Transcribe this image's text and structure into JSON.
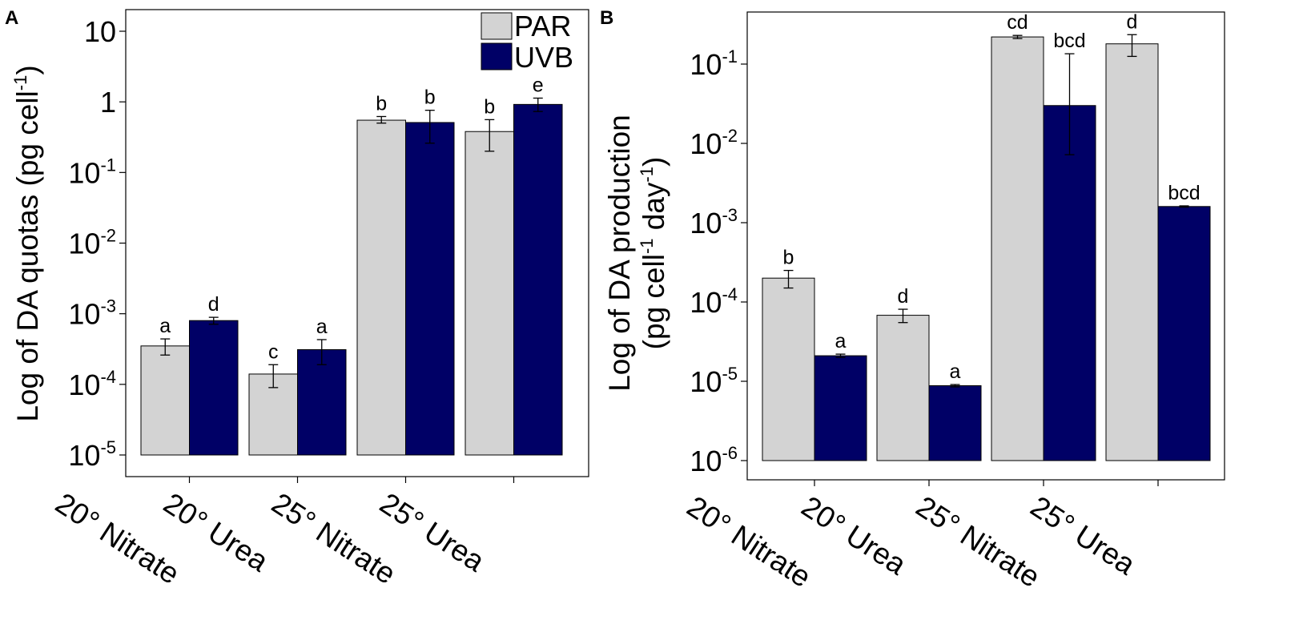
{
  "chart_data": [
    {
      "panel": "A",
      "type": "bar",
      "scale": "log",
      "ylabel": "Log of DA quotas (pg cell-1)",
      "ylim": [
        1e-05,
        20
      ],
      "yticks": [
        {
          "value": 1e-05,
          "base": "10",
          "exp": "-5"
        },
        {
          "value": 0.0001,
          "base": "10",
          "exp": "-4"
        },
        {
          "value": 0.001,
          "base": "10",
          "exp": "-3"
        },
        {
          "value": 0.01,
          "base": "10",
          "exp": "-2"
        },
        {
          "value": 0.1,
          "base": "10",
          "exp": "-1"
        },
        {
          "value": 1,
          "base": "1",
          "exp": ""
        },
        {
          "value": 10,
          "base": "10",
          "exp": ""
        }
      ],
      "categories": [
        "20° Nitrate",
        "20° Urea",
        "25° Nitrate",
        "25° Urea"
      ],
      "series": [
        {
          "name": "PAR",
          "color": "#d3d3d3",
          "values": [
            0.00035,
            0.00014,
            0.55,
            0.38
          ],
          "err_low": [
            0.00026,
            9e-05,
            0.5,
            0.2
          ],
          "err_high": [
            0.00044,
            0.00019,
            0.62,
            0.56
          ],
          "letters": [
            "a",
            "c",
            "b",
            "b"
          ]
        },
        {
          "name": "UVB",
          "color": "#000066",
          "values": [
            0.0008,
            0.00031,
            0.51,
            0.92
          ],
          "err_low": [
            0.00071,
            0.00019,
            0.26,
            0.73
          ],
          "err_high": [
            0.00089,
            0.00043,
            0.76,
            1.13
          ],
          "letters": [
            "d",
            "a",
            "b",
            "e"
          ]
        }
      ],
      "legend": {
        "position": "top-right",
        "entries": [
          "PAR",
          "UVB"
        ]
      }
    },
    {
      "panel": "B",
      "type": "bar",
      "scale": "log",
      "ylabel_line1": "Log of DA production",
      "ylabel_line2": "(pg cell-1 day-1)",
      "ylim": [
        1e-06,
        0.45
      ],
      "yticks": [
        {
          "value": 1e-06,
          "base": "10",
          "exp": "-6"
        },
        {
          "value": 1e-05,
          "base": "10",
          "exp": "-5"
        },
        {
          "value": 0.0001,
          "base": "10",
          "exp": "-4"
        },
        {
          "value": 0.001,
          "base": "10",
          "exp": "-3"
        },
        {
          "value": 0.01,
          "base": "10",
          "exp": "-2"
        },
        {
          "value": 0.1,
          "base": "10",
          "exp": "-1"
        }
      ],
      "categories": [
        "20° Nitrate",
        "20° Urea",
        "25° Nitrate",
        "25° Urea"
      ],
      "series": [
        {
          "name": "PAR",
          "color": "#d3d3d3",
          "values": [
            0.0002,
            6.8e-05,
            0.22,
            0.18
          ],
          "err_low": [
            0.00015,
            5.5e-05,
            0.21,
            0.125
          ],
          "err_high": [
            0.00025,
            8.1e-05,
            0.23,
            0.235
          ],
          "letters": [
            "b",
            "d",
            "cd",
            "d"
          ]
        },
        {
          "name": "UVB",
          "color": "#000066",
          "values": [
            2.1e-05,
            8.8e-06,
            0.03,
            0.0016
          ],
          "err_low": [
            2e-05,
            8.5e-06,
            0.0072,
            0.00157
          ],
          "err_high": [
            2.2e-05,
            9.1e-06,
            0.135,
            0.00163
          ],
          "letters": [
            "a",
            "a",
            "bcd",
            "bcd"
          ]
        }
      ]
    }
  ],
  "ylabel_parts": {
    "quota_main": "Log of DA quotas (pg cell",
    "exp_neg1": "-1",
    "close_paren": ")",
    "prod_line1": "Log of DA production",
    "prod_cell": "(pg cell",
    "prod_day": " day",
    "prod_close": ")"
  }
}
